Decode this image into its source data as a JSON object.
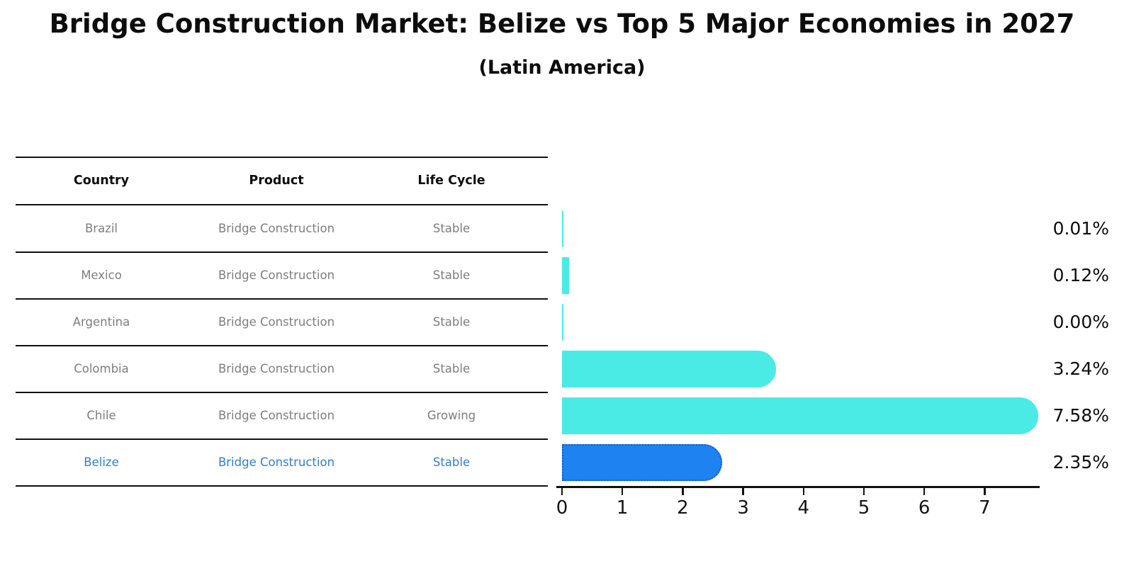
{
  "title": "Bridge Construction Market: Belize vs Top 5 Major Economies in 2027",
  "subtitle": "(Latin America)",
  "table": {
    "headers": [
      "Country",
      "Product",
      "Life Cycle"
    ],
    "rows": [
      {
        "country": "Brazil",
        "product": "Bridge Construction",
        "life_cycle": "Stable",
        "highlight": false
      },
      {
        "country": "Mexico",
        "product": "Bridge Construction",
        "life_cycle": "Stable",
        "highlight": false
      },
      {
        "country": "Argentina",
        "product": "Bridge Construction",
        "life_cycle": "Stable",
        "highlight": false
      },
      {
        "country": "Colombia",
        "product": "Bridge Construction",
        "life_cycle": "Stable",
        "highlight": false
      },
      {
        "country": "Chile",
        "product": "Bridge Construction",
        "life_cycle": "Growing",
        "highlight": false
      },
      {
        "country": "Belize",
        "product": "Bridge Construction",
        "life_cycle": "Stable",
        "highlight": true
      }
    ]
  },
  "chart_data": {
    "type": "bar",
    "orientation": "horizontal",
    "title": "Bridge Construction Market: Belize vs Top 5 Major Economies in 2027",
    "subtitle": "(Latin America)",
    "categories": [
      "Brazil",
      "Mexico",
      "Argentina",
      "Colombia",
      "Chile",
      "Belize"
    ],
    "values": [
      0.01,
      0.12,
      0.0,
      3.24,
      7.58,
      2.35
    ],
    "value_labels": [
      "0.01%",
      "0.12%",
      "0.00%",
      "3.24%",
      "7.58%",
      "2.35%"
    ],
    "x_ticks": [
      "0",
      "1",
      "2",
      "3",
      "4",
      "5",
      "6",
      "7"
    ],
    "xlim": [
      0,
      7.9
    ],
    "grid": false,
    "legend": "none",
    "highlight_index": 5,
    "colors": {
      "bar": "#4AEBE4",
      "highlight_bar": "#1E82F0",
      "highlight_border": "#0D5FD6",
      "row_text": "#7e7e7e",
      "highlight_text": "#2e7fd6",
      "axis": "#111111",
      "label_text": "#0d0d0d"
    }
  }
}
